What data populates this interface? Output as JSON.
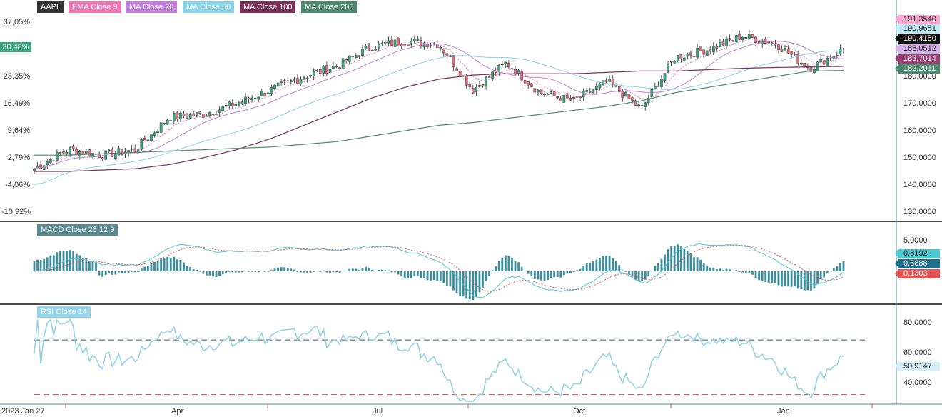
{
  "symbol": "AAPL",
  "main_panel": {
    "legend": [
      {
        "label": "AAPL",
        "color": "#333333"
      },
      {
        "label": "EMA Close 9",
        "color": "#f075b5"
      },
      {
        "label": "MA Close 20",
        "color": "#c07ddc"
      },
      {
        "label": "MA Close 50",
        "color": "#87d3ea"
      },
      {
        "label": "MA Close 100",
        "color": "#7a2f57"
      },
      {
        "label": "MA Close 200",
        "color": "#4e8a6f"
      }
    ],
    "left_axis_percent_labels": [
      "37,05%",
      "30,48%",
      "23,35%",
      "16,49%",
      "9,64%",
      "2,79%",
      "-4,06%",
      "-10,92%"
    ],
    "current_percent_label": "30,48%",
    "right_axis_ticks": [
      "180,0000",
      "170,0000",
      "160,0000",
      "150,0000",
      "140,0000",
      "130,0000"
    ],
    "value_tags": [
      {
        "text": "191,3540",
        "color": "#f7a8cf"
      },
      {
        "text": "190,9651",
        "color": "#bfe9f5"
      },
      {
        "text": "190,4150",
        "color": "#111111"
      },
      {
        "text": "188,0512",
        "color": "#d7b2ee"
      },
      {
        "text": "183,7014",
        "color": "#9a3f73"
      },
      {
        "text": "182,2011",
        "color": "#4e8a6f"
      }
    ],
    "up_color": "#3aa57e",
    "down_color": "#e0707a"
  },
  "macd_panel": {
    "legend": "MACD Close 26 12 9",
    "right_axis_ticks": [
      "5,0000"
    ],
    "value_tags": [
      {
        "text": "0,8192",
        "color": "#4cc6cf"
      },
      {
        "text": "0,6888",
        "color": "#1f6e8c"
      },
      {
        "text": "0,1303",
        "color": "#e25454"
      }
    ],
    "macd_color": "#4cc6cf",
    "signal_color": "#e25454",
    "hist_color": "#3b8ea0"
  },
  "rsi_panel": {
    "legend": "RSI Close 14",
    "right_axis_ticks": [
      "80,0000",
      "60,0000",
      "40,0000"
    ],
    "value_tag": {
      "text": "50,9147",
      "color": "#d6eef7"
    },
    "line_color": "#95d3e8",
    "upper_level": 70,
    "lower_level": 30
  },
  "time_axis": {
    "labels": [
      "2023 Jan 27",
      "Apr",
      "Jul",
      "Oct",
      "Jan"
    ]
  },
  "chart_data": {
    "type": "line",
    "title": "AAPL",
    "x": [
      "2023-01-27",
      "2023-02-15",
      "2023-03-01",
      "2023-03-15",
      "2023-04-03",
      "2023-04-20",
      "2023-05-05",
      "2023-05-20",
      "2023-06-05",
      "2023-06-20",
      "2023-07-05",
      "2023-07-20",
      "2023-08-03",
      "2023-08-18",
      "2023-09-01",
      "2023-09-15",
      "2023-10-02",
      "2023-10-16",
      "2023-10-31",
      "2023-11-14",
      "2023-11-30",
      "2023-12-14",
      "2023-12-29",
      "2024-01-12",
      "2024-01-26"
    ],
    "series": [
      {
        "name": "AAPL",
        "values": [
          146,
          153,
          151,
          153,
          165,
          166,
          170,
          175,
          180,
          184,
          191,
          193,
          192,
          175,
          185,
          174,
          171,
          178,
          168,
          187,
          190,
          195,
          192,
          183,
          190
        ]
      },
      {
        "name": "MA Close 200",
        "values": [
          151,
          151,
          151.5,
          152,
          152.5,
          153,
          153.5,
          154,
          155,
          156,
          158,
          160,
          162,
          163,
          164.5,
          166,
          167.5,
          169,
          171,
          174,
          176,
          178,
          180,
          182,
          182.2
        ]
      },
      {
        "name": "MA Close 100",
        "values": [
          145,
          145,
          145.5,
          146,
          147.5,
          150,
          153,
          157,
          162,
          167,
          172,
          176,
          179,
          180.5,
          181,
          181,
          181,
          181.5,
          182,
          182,
          182.5,
          183,
          183.3,
          183.5,
          183.7
        ]
      }
    ],
    "right_axis_range": [
      125,
      195
    ],
    "macd": {
      "ylim": [
        -4,
        6
      ]
    },
    "rsi": {
      "ylim": [
        25,
        90
      ],
      "levels": [
        30,
        70
      ]
    },
    "grid": false
  }
}
